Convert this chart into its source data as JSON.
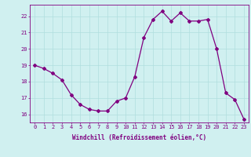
{
  "x": [
    0,
    1,
    2,
    3,
    4,
    5,
    6,
    7,
    8,
    9,
    10,
    11,
    12,
    13,
    14,
    15,
    16,
    17,
    18,
    19,
    20,
    21,
    22,
    23
  ],
  "y": [
    19.0,
    18.8,
    18.5,
    18.1,
    17.2,
    16.6,
    16.3,
    16.2,
    16.2,
    16.8,
    17.0,
    18.3,
    20.7,
    21.8,
    22.3,
    21.7,
    22.2,
    21.7,
    21.7,
    21.8,
    20.0,
    17.3,
    16.9,
    15.7
  ],
  "line_color": "#800080",
  "marker": "D",
  "markersize": 2.0,
  "linewidth": 0.9,
  "bg_color": "#d0f0f0",
  "grid_color": "#b0dede",
  "xlabel": "Windchill (Refroidissement éolien,°C)",
  "xlabel_fontsize": 5.5,
  "yticks": [
    16,
    17,
    18,
    19,
    20,
    21,
    22
  ],
  "xticks": [
    0,
    1,
    2,
    3,
    4,
    5,
    6,
    7,
    8,
    9,
    10,
    11,
    12,
    13,
    14,
    15,
    16,
    17,
    18,
    19,
    20,
    21,
    22,
    23
  ],
  "ylim": [
    15.5,
    22.7
  ],
  "xlim": [
    -0.5,
    23.5
  ],
  "tick_color": "#800080",
  "tick_fontsize": 5.0,
  "spine_color": "#800080"
}
